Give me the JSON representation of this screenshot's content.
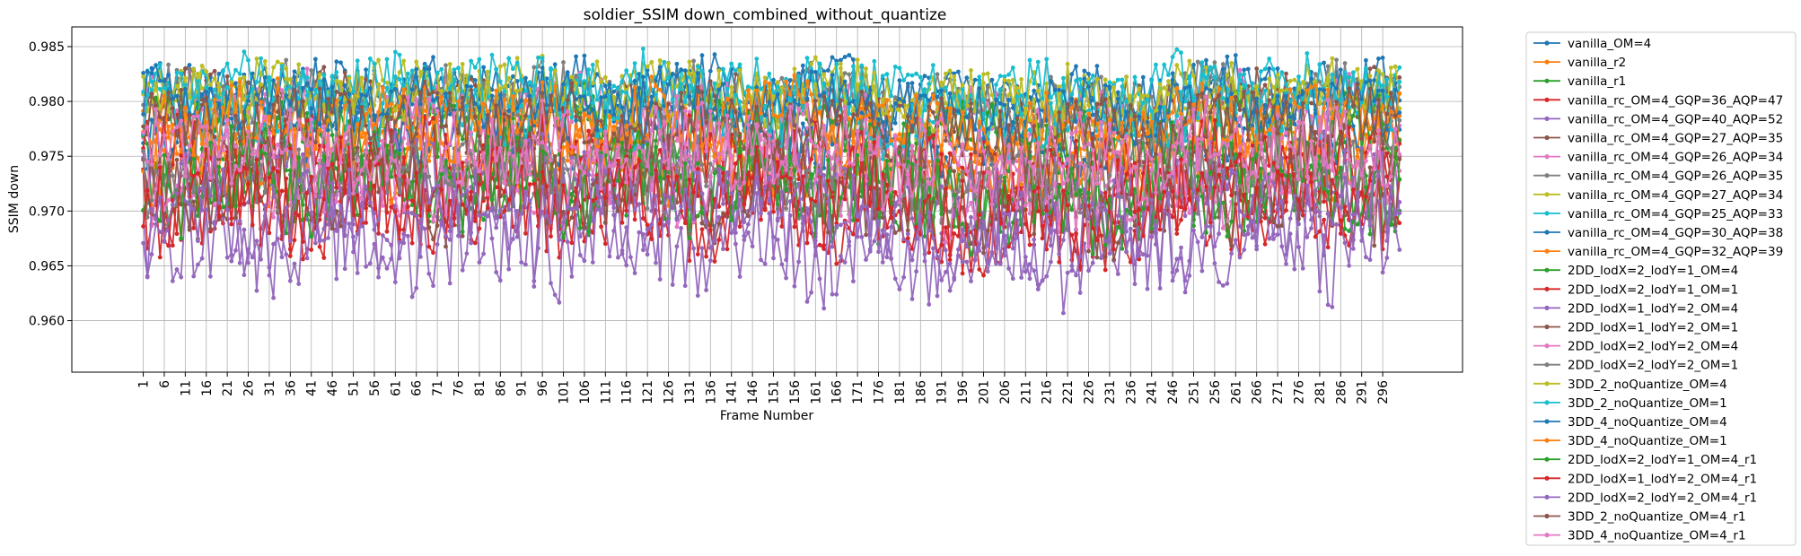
{
  "chart_data": {
    "type": "line",
    "title": "soldier_SSIM down_combined_without_quantize",
    "xlabel": "Frame Number",
    "ylabel": "SSIM down",
    "xlim": [
      -16,
      315
    ],
    "ylim": [
      0.9553,
      0.9868
    ],
    "x_start": 1,
    "x_end": 300,
    "x_tick_step": 5,
    "y_ticks": [
      0.96,
      0.965,
      0.97,
      0.975,
      0.98,
      0.985
    ],
    "y_tick_labels": [
      "0.960",
      "0.965",
      "0.970",
      "0.975",
      "0.980",
      "0.985"
    ],
    "grid": true,
    "legend_position": "outside-right",
    "marker": "circle",
    "series": [
      {
        "name": "vanilla_OM=4",
        "color": "#1f77b4",
        "base": 0.9815,
        "amp": 0.0022
      },
      {
        "name": "vanilla_r2",
        "color": "#ff7f0e",
        "base": 0.976,
        "amp": 0.0035
      },
      {
        "name": "vanilla_r1",
        "color": "#2ca02c",
        "base": 0.973,
        "amp": 0.004
      },
      {
        "name": "vanilla_rc_OM=4_GQP=36_AQP=47",
        "color": "#d62728",
        "base": 0.9705,
        "amp": 0.004
      },
      {
        "name": "vanilla_rc_OM=4_GQP=40_AQP=52",
        "color": "#9467bd",
        "base": 0.967,
        "amp": 0.0045
      },
      {
        "name": "vanilla_rc_OM=4_GQP=27_AQP=35",
        "color": "#8c564b",
        "base": 0.98,
        "amp": 0.0025
      },
      {
        "name": "vanilla_rc_OM=4_GQP=26_AQP=34",
        "color": "#e377c2",
        "base": 0.979,
        "amp": 0.003
      },
      {
        "name": "vanilla_rc_OM=4_GQP=26_AQP=35",
        "color": "#7f7f7f",
        "base": 0.9805,
        "amp": 0.0025
      },
      {
        "name": "vanilla_rc_OM=4_GQP=27_AQP=34",
        "color": "#bcbd22",
        "base": 0.981,
        "amp": 0.0025
      },
      {
        "name": "vanilla_rc_OM=4_GQP=25_AQP=33",
        "color": "#17becf",
        "base": 0.9815,
        "amp": 0.0025
      },
      {
        "name": "vanilla_rc_OM=4_GQP=30_AQP=38",
        "color": "#1f77b4",
        "base": 0.9775,
        "amp": 0.003
      },
      {
        "name": "vanilla_rc_OM=4_GQP=32_AQP=39",
        "color": "#ff7f0e",
        "base": 0.975,
        "amp": 0.0035
      },
      {
        "name": "2DD_lodX=2_lodY=1_OM=4",
        "color": "#2ca02c",
        "base": 0.977,
        "amp": 0.0035
      },
      {
        "name": "2DD_lodX=2_lodY=1_OM=1",
        "color": "#d62728",
        "base": 0.974,
        "amp": 0.004
      },
      {
        "name": "2DD_lodX=1_lodY=2_OM=4",
        "color": "#9467bd",
        "base": 0.972,
        "amp": 0.004
      },
      {
        "name": "2DD_lodX=1_lodY=2_OM=1",
        "color": "#8c564b",
        "base": 0.972,
        "amp": 0.004
      },
      {
        "name": "2DD_lodX=2_lodY=2_OM=4",
        "color": "#e377c2",
        "base": 0.9735,
        "amp": 0.004
      },
      {
        "name": "2DD_lodX=2_lodY=2_OM=1",
        "color": "#7f7f7f",
        "base": 0.974,
        "amp": 0.0035
      },
      {
        "name": "3DD_2_noQuantize_OM=4",
        "color": "#bcbd22",
        "base": 0.9805,
        "amp": 0.0025
      },
      {
        "name": "3DD_2_noQuantize_OM=1",
        "color": "#17becf",
        "base": 0.9795,
        "amp": 0.003
      },
      {
        "name": "3DD_4_noQuantize_OM=4",
        "color": "#1f77b4",
        "base": 0.98,
        "amp": 0.0025
      },
      {
        "name": "3DD_4_noQuantize_OM=1",
        "color": "#ff7f0e",
        "base": 0.9785,
        "amp": 0.003
      },
      {
        "name": "2DD_lodX=2_lodY=1_OM=4_r1",
        "color": "#2ca02c",
        "base": 0.9725,
        "amp": 0.004
      },
      {
        "name": "2DD_lodX=1_lodY=2_OM=4_r1",
        "color": "#d62728",
        "base": 0.9715,
        "amp": 0.004
      },
      {
        "name": "2DD_lodX=2_lodY=2_OM=4_r1",
        "color": "#9467bd",
        "base": 0.9695,
        "amp": 0.0045
      },
      {
        "name": "3DD_2_noQuantize_OM=4_r1",
        "color": "#8c564b",
        "base": 0.978,
        "amp": 0.003
      },
      {
        "name": "3DD_4_noQuantize_OM=4_r1",
        "color": "#e377c2",
        "base": 0.976,
        "amp": 0.0035
      }
    ]
  }
}
